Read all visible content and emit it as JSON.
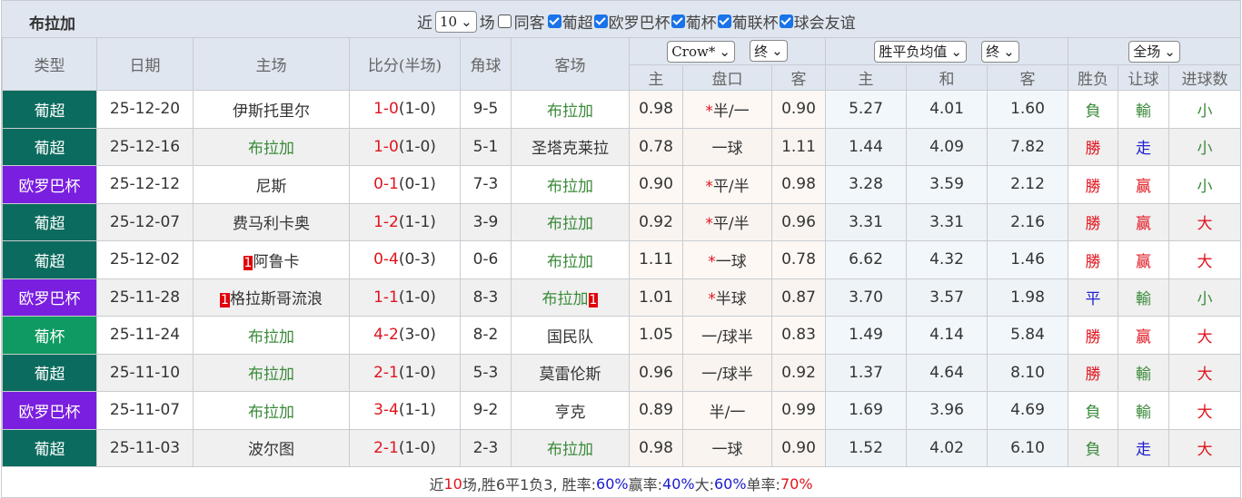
{
  "team": "布拉加",
  "filters": {
    "near": "近",
    "count": "10",
    "field": "场",
    "same_away": "同客",
    "same_away_checked": false,
    "comps": [
      {
        "label": "葡超",
        "checked": true
      },
      {
        "label": "欧罗巴杯",
        "checked": true
      },
      {
        "label": "葡杯",
        "checked": true
      },
      {
        "label": "葡联杯",
        "checked": true
      },
      {
        "label": "球会友谊",
        "checked": true
      }
    ]
  },
  "headers": {
    "type": "类型",
    "date": "日期",
    "home": "主场",
    "score": "比分(半场)",
    "corner": "角球",
    "away": "客场",
    "odds_company": "Crow*",
    "odds_time": "终",
    "avg_type": "胜平负均值",
    "avg_time": "终",
    "scope": "全场",
    "sub": [
      "主",
      "盘口",
      "客",
      "主",
      "和",
      "客",
      "胜负",
      "让球",
      "进球数"
    ]
  },
  "colors": {
    "葡超": "#0b6b5e",
    "欧罗巴杯": "#7a1fe0",
    "葡杯": "#0e9a60"
  },
  "rows": [
    {
      "type": "葡超",
      "date": "25-12-20",
      "home": "伊斯托里尔",
      "home_red": "",
      "home_green": false,
      "ft": "1-0",
      "ht": "(1-0)",
      "corner": "9-5",
      "away": "布拉加",
      "away_red": "",
      "away_green": true,
      "oh": "0.98",
      "star": "*",
      "line": "半/一",
      "oa": "0.90",
      "w": "5.27",
      "d": "4.01",
      "l": "1.60",
      "r1": "負",
      "r1c": "green",
      "r2": "輸",
      "r2c": "green",
      "r3": "小",
      "r3c": "green"
    },
    {
      "type": "葡超",
      "date": "25-12-16",
      "home": "布拉加",
      "home_red": "",
      "home_green": true,
      "ft": "1-0",
      "ht": "(1-0)",
      "corner": "5-1",
      "away": "圣塔克莱拉",
      "away_red": "",
      "away_green": false,
      "oh": "0.78",
      "star": "",
      "line": "一球",
      "oa": "1.11",
      "w": "1.44",
      "d": "4.09",
      "l": "7.82",
      "r1": "勝",
      "r1c": "red",
      "r2": "走",
      "r2c": "blue",
      "r3": "小",
      "r3c": "green"
    },
    {
      "type": "欧罗巴杯",
      "date": "25-12-12",
      "home": "尼斯",
      "home_red": "",
      "home_green": false,
      "ft": "0-1",
      "ht": "(0-1)",
      "corner": "7-3",
      "away": "布拉加",
      "away_red": "",
      "away_green": true,
      "oh": "0.90",
      "star": "*",
      "line": "平/半",
      "oa": "0.98",
      "w": "3.28",
      "d": "3.59",
      "l": "2.12",
      "r1": "勝",
      "r1c": "red",
      "r2": "赢",
      "r2c": "red",
      "r3": "小",
      "r3c": "green"
    },
    {
      "type": "葡超",
      "date": "25-12-07",
      "home": "费马利卡奥",
      "home_red": "",
      "home_green": false,
      "ft": "1-2",
      "ht": "(1-1)",
      "corner": "3-9",
      "away": "布拉加",
      "away_red": "",
      "away_green": true,
      "oh": "0.92",
      "star": "*",
      "line": "平/半",
      "oa": "0.96",
      "w": "3.31",
      "d": "3.31",
      "l": "2.16",
      "r1": "勝",
      "r1c": "red",
      "r2": "赢",
      "r2c": "red",
      "r3": "大",
      "r3c": "red"
    },
    {
      "type": "葡超",
      "date": "25-12-02",
      "home": "阿鲁卡",
      "home_red": "1",
      "home_green": false,
      "ft": "0-4",
      "ht": "(0-3)",
      "corner": "0-6",
      "away": "布拉加",
      "away_red": "",
      "away_green": true,
      "oh": "1.11",
      "star": "*",
      "line": "一球",
      "oa": "0.78",
      "w": "6.62",
      "d": "4.32",
      "l": "1.46",
      "r1": "勝",
      "r1c": "red",
      "r2": "赢",
      "r2c": "red",
      "r3": "大",
      "r3c": "red"
    },
    {
      "type": "欧罗巴杯",
      "date": "25-11-28",
      "home": "格拉斯哥流浪",
      "home_red": "1",
      "home_green": false,
      "ft": "1-1",
      "ht": "(1-0)",
      "corner": "8-3",
      "away": "布拉加",
      "away_red": "1",
      "away_green": true,
      "oh": "1.01",
      "star": "*",
      "line": "半球",
      "oa": "0.87",
      "w": "3.70",
      "d": "3.57",
      "l": "1.98",
      "r1": "平",
      "r1c": "blue",
      "r2": "輸",
      "r2c": "green",
      "r3": "小",
      "r3c": "green"
    },
    {
      "type": "葡杯",
      "date": "25-11-24",
      "home": "布拉加",
      "home_red": "",
      "home_green": true,
      "ft": "4-2",
      "ht": "(3-0)",
      "corner": "8-2",
      "away": "国民队",
      "away_red": "",
      "away_green": false,
      "oh": "1.05",
      "star": "",
      "line": "一/球半",
      "oa": "0.83",
      "w": "1.49",
      "d": "4.14",
      "l": "5.84",
      "r1": "勝",
      "r1c": "red",
      "r2": "赢",
      "r2c": "red",
      "r3": "大",
      "r3c": "red"
    },
    {
      "type": "葡超",
      "date": "25-11-10",
      "home": "布拉加",
      "home_red": "",
      "home_green": true,
      "ft": "2-1",
      "ht": "(1-0)",
      "corner": "5-3",
      "away": "莫雷伦斯",
      "away_red": "",
      "away_green": false,
      "oh": "0.96",
      "star": "",
      "line": "一/球半",
      "oa": "0.92",
      "w": "1.37",
      "d": "4.64",
      "l": "8.10",
      "r1": "勝",
      "r1c": "red",
      "r2": "輸",
      "r2c": "green",
      "r3": "大",
      "r3c": "red"
    },
    {
      "type": "欧罗巴杯",
      "date": "25-11-07",
      "home": "布拉加",
      "home_red": "",
      "home_green": true,
      "ft": "3-4",
      "ht": "(1-1)",
      "corner": "9-2",
      "away": "亨克",
      "away_red": "",
      "away_green": false,
      "oh": "0.89",
      "star": "",
      "line": "半/一",
      "oa": "0.99",
      "w": "1.69",
      "d": "3.96",
      "l": "4.69",
      "r1": "負",
      "r1c": "green",
      "r2": "輸",
      "r2c": "green",
      "r3": "大",
      "r3c": "red"
    },
    {
      "type": "葡超",
      "date": "25-11-03",
      "home": "波尔图",
      "home_red": "",
      "home_green": false,
      "ft": "2-1",
      "ht": "(1-0)",
      "corner": "2-3",
      "away": "布拉加",
      "away_red": "",
      "away_green": true,
      "oh": "0.98",
      "star": "",
      "line": "一球",
      "oa": "0.90",
      "w": "1.52",
      "d": "4.02",
      "l": "6.10",
      "r1": "負",
      "r1c": "green",
      "r2": "走",
      "r2c": "blue",
      "r3": "大",
      "r3c": "red"
    }
  ],
  "summary": {
    "p1": "近",
    "n": "10",
    "p2": "场,胜6平1负3, 胜率:",
    "win": "60%",
    "p3": " 赢率:",
    "cover": "40%",
    "p4": " 大:",
    "over": "60%",
    "p5": " 单率:",
    "odd": "70%"
  }
}
